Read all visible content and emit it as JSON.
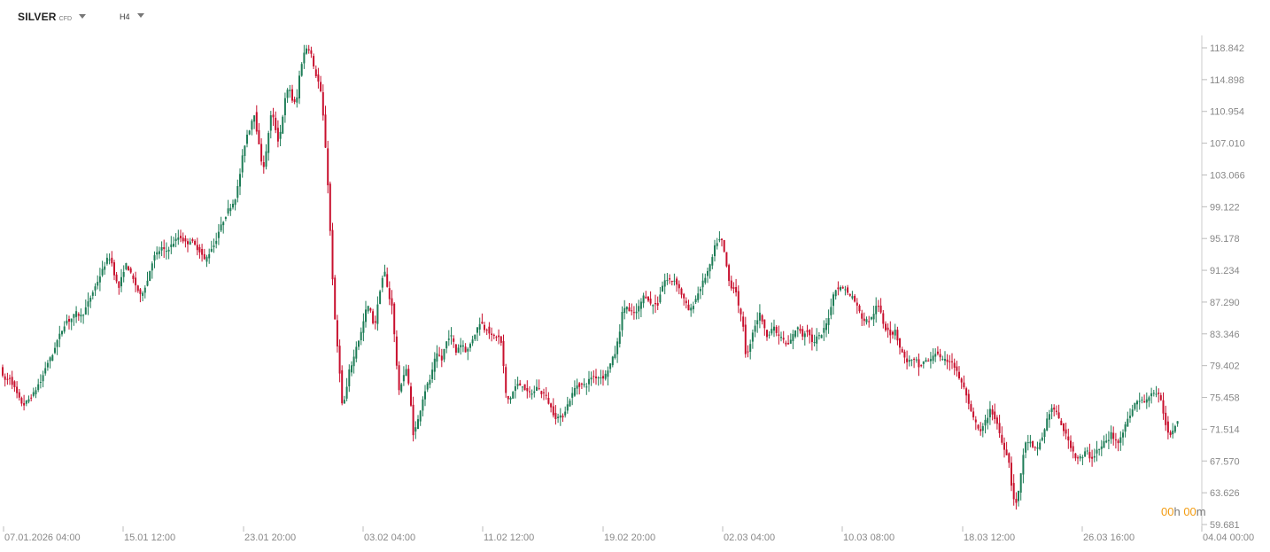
{
  "header": {
    "symbol": "SILVER",
    "symbol_type": "CFD",
    "timeframe": "H4"
  },
  "timer": {
    "hours": "00",
    "hours_unit": "h",
    "minutes": "00",
    "minutes_unit": "m"
  },
  "colors": {
    "up": "#1e7d57",
    "down": "#c8102e",
    "axis_text": "#888888",
    "timer": "#f39c12"
  },
  "chart_data": {
    "type": "candlestick",
    "y_ticks": [
      "118.842",
      "114.898",
      "110.954",
      "107.010",
      "103.066",
      "99.122",
      "95.178",
      "91.234",
      "87.290",
      "83.346",
      "79.402",
      "75.458",
      "71.514",
      "67.570",
      "63.626",
      "59.681"
    ],
    "x_ticks": [
      "07.01.2026 04:00",
      "15.01 12:00",
      "23.01 20:00",
      "03.02 04:00",
      "11.02 12:00",
      "19.02 20:00",
      "02.03 04:00",
      "10.03 08:00",
      "18.03 12:00",
      "26.03 16:00",
      "04.04 00:00"
    ],
    "ylim": [
      59.681,
      122.2
    ],
    "path": [
      [
        0,
        80.5
      ],
      [
        4,
        78
      ],
      [
        8,
        77.5
      ],
      [
        12,
        78
      ],
      [
        16,
        77
      ],
      [
        20,
        76
      ],
      [
        24,
        75
      ],
      [
        28,
        74.5
      ],
      [
        32,
        75
      ],
      [
        36,
        75.5
      ],
      [
        40,
        76
      ],
      [
        44,
        77
      ],
      [
        48,
        77.5
      ],
      [
        52,
        79
      ],
      [
        56,
        80
      ],
      [
        60,
        80.5
      ],
      [
        64,
        82
      ],
      [
        68,
        83
      ],
      [
        72,
        84
      ],
      [
        76,
        85
      ],
      [
        80,
        85
      ],
      [
        84,
        85.5
      ],
      [
        88,
        86
      ],
      [
        92,
        85.5
      ],
      [
        96,
        86
      ],
      [
        100,
        87
      ],
      [
        104,
        88
      ],
      [
        108,
        89
      ],
      [
        112,
        90
      ],
      [
        116,
        91
      ],
      [
        120,
        92
      ],
      [
        124,
        93
      ],
      [
        128,
        92
      ],
      [
        132,
        90
      ],
      [
        136,
        89
      ],
      [
        140,
        91
      ],
      [
        144,
        92
      ],
      [
        148,
        91
      ],
      [
        152,
        90
      ],
      [
        156,
        89
      ],
      [
        160,
        88
      ],
      [
        164,
        89
      ],
      [
        168,
        90
      ],
      [
        172,
        92
      ],
      [
        176,
        93
      ],
      [
        180,
        93.5
      ],
      [
        184,
        94
      ],
      [
        188,
        93.5
      ],
      [
        192,
        94
      ],
      [
        196,
        94.5
      ],
      [
        200,
        95
      ],
      [
        204,
        95.5
      ],
      [
        208,
        95
      ],
      [
        212,
        94.5
      ],
      [
        216,
        95
      ],
      [
        220,
        94.5
      ],
      [
        224,
        94
      ],
      [
        228,
        93.5
      ],
      [
        232,
        92.5
      ],
      [
        236,
        93
      ],
      [
        240,
        94
      ],
      [
        244,
        94.5
      ],
      [
        248,
        96
      ],
      [
        252,
        97
      ],
      [
        256,
        98
      ],
      [
        260,
        99
      ],
      [
        264,
        99.5
      ],
      [
        268,
        100.5
      ],
      [
        272,
        103
      ],
      [
        276,
        106
      ],
      [
        280,
        108
      ],
      [
        284,
        109
      ],
      [
        288,
        111
      ],
      [
        292,
        108
      ],
      [
        296,
        105
      ],
      [
        300,
        104
      ],
      [
        304,
        108
      ],
      [
        308,
        111
      ],
      [
        312,
        109
      ],
      [
        316,
        107
      ],
      [
        320,
        110
      ],
      [
        324,
        113
      ],
      [
        328,
        114
      ],
      [
        332,
        112
      ],
      [
        336,
        112
      ],
      [
        340,
        116
      ],
      [
        344,
        118
      ],
      [
        348,
        119
      ],
      [
        352,
        118.5
      ],
      [
        356,
        116
      ],
      [
        360,
        115
      ],
      [
        364,
        113
      ],
      [
        368,
        108
      ],
      [
        372,
        101
      ],
      [
        376,
        92
      ],
      [
        380,
        84
      ],
      [
        384,
        80
      ],
      [
        388,
        74
      ],
      [
        392,
        76
      ],
      [
        396,
        79
      ],
      [
        400,
        80
      ],
      [
        404,
        82
      ],
      [
        408,
        83
      ],
      [
        412,
        85
      ],
      [
        416,
        87
      ],
      [
        420,
        86
      ],
      [
        424,
        84
      ],
      [
        428,
        87
      ],
      [
        432,
        90
      ],
      [
        436,
        91
      ],
      [
        440,
        88
      ],
      [
        444,
        87
      ],
      [
        448,
        81
      ],
      [
        452,
        76
      ],
      [
        456,
        78
      ],
      [
        460,
        79
      ],
      [
        464,
        76
      ],
      [
        468,
        71
      ],
      [
        472,
        72
      ],
      [
        476,
        74
      ],
      [
        480,
        76
      ],
      [
        484,
        77
      ],
      [
        488,
        78
      ],
      [
        492,
        80
      ],
      [
        496,
        81
      ],
      [
        500,
        80
      ],
      [
        504,
        82
      ],
      [
        508,
        83
      ],
      [
        512,
        83
      ],
      [
        516,
        81
      ],
      [
        520,
        82
      ],
      [
        524,
        82
      ],
      [
        528,
        81
      ],
      [
        532,
        82
      ],
      [
        536,
        83
      ],
      [
        540,
        84
      ],
      [
        544,
        85
      ],
      [
        548,
        84
      ],
      [
        552,
        84
      ],
      [
        556,
        83
      ],
      [
        560,
        83
      ],
      [
        564,
        83
      ],
      [
        568,
        82
      ],
      [
        572,
        76
      ],
      [
        576,
        75
      ],
      [
        580,
        76
      ],
      [
        584,
        77
      ],
      [
        588,
        77
      ],
      [
        592,
        77
      ],
      [
        596,
        76
      ],
      [
        600,
        76
      ],
      [
        604,
        76
      ],
      [
        608,
        77
      ],
      [
        612,
        76
      ],
      [
        616,
        76
      ],
      [
        620,
        75
      ],
      [
        624,
        74
      ],
      [
        628,
        73
      ],
      [
        632,
        73
      ],
      [
        636,
        73
      ],
      [
        640,
        74
      ],
      [
        644,
        75
      ],
      [
        648,
        76
      ],
      [
        652,
        77
      ],
      [
        656,
        77
      ],
      [
        660,
        77
      ],
      [
        664,
        77
      ],
      [
        668,
        78
      ],
      [
        672,
        78
      ],
      [
        676,
        78
      ],
      [
        680,
        78
      ],
      [
        684,
        78
      ],
      [
        688,
        79
      ],
      [
        692,
        80
      ],
      [
        696,
        81
      ],
      [
        700,
        83
      ],
      [
        704,
        86
      ],
      [
        708,
        87
      ],
      [
        712,
        86
      ],
      [
        716,
        86
      ],
      [
        720,
        86
      ],
      [
        724,
        87
      ],
      [
        728,
        88
      ],
      [
        732,
        88
      ],
      [
        736,
        87
      ],
      [
        740,
        87
      ],
      [
        744,
        87
      ],
      [
        748,
        89
      ],
      [
        752,
        90
      ],
      [
        756,
        90
      ],
      [
        760,
        90
      ],
      [
        764,
        90
      ],
      [
        768,
        89
      ],
      [
        772,
        88
      ],
      [
        776,
        87
      ],
      [
        780,
        86
      ],
      [
        784,
        87
      ],
      [
        788,
        88
      ],
      [
        792,
        89
      ],
      [
        796,
        90
      ],
      [
        800,
        91
      ],
      [
        804,
        92
      ],
      [
        808,
        94
      ],
      [
        812,
        95
      ],
      [
        816,
        95
      ],
      [
        820,
        93
      ],
      [
        824,
        90
      ],
      [
        828,
        89
      ],
      [
        832,
        89
      ],
      [
        836,
        86
      ],
      [
        840,
        85
      ],
      [
        844,
        80
      ],
      [
        848,
        82
      ],
      [
        852,
        84
      ],
      [
        856,
        85
      ],
      [
        860,
        86
      ],
      [
        864,
        84
      ],
      [
        868,
        83
      ],
      [
        872,
        84
      ],
      [
        876,
        84
      ],
      [
        880,
        83
      ],
      [
        884,
        83
      ],
      [
        888,
        82
      ],
      [
        892,
        82
      ],
      [
        896,
        83
      ],
      [
        900,
        84
      ],
      [
        904,
        84
      ],
      [
        908,
        83
      ],
      [
        912,
        84
      ],
      [
        916,
        83
      ],
      [
        920,
        82
      ],
      [
        924,
        83
      ],
      [
        928,
        83
      ],
      [
        932,
        84
      ],
      [
        936,
        85
      ],
      [
        940,
        87
      ],
      [
        944,
        89
      ],
      [
        948,
        89
      ],
      [
        952,
        89
      ],
      [
        956,
        89
      ],
      [
        960,
        88
      ],
      [
        964,
        88
      ],
      [
        968,
        87
      ],
      [
        972,
        86
      ],
      [
        976,
        85
      ],
      [
        980,
        85
      ],
      [
        984,
        85
      ],
      [
        988,
        86
      ],
      [
        992,
        87
      ],
      [
        996,
        86
      ],
      [
        1000,
        84
      ],
      [
        1004,
        84
      ],
      [
        1008,
        83
      ],
      [
        1012,
        84
      ],
      [
        1016,
        82
      ],
      [
        1020,
        81
      ],
      [
        1024,
        80
      ],
      [
        1028,
        80
      ],
      [
        1032,
        80
      ],
      [
        1036,
        80
      ],
      [
        1040,
        79
      ],
      [
        1044,
        80
      ],
      [
        1048,
        80
      ],
      [
        1052,
        80
      ],
      [
        1056,
        81
      ],
      [
        1060,
        81
      ],
      [
        1064,
        80
      ],
      [
        1068,
        80
      ],
      [
        1072,
        80
      ],
      [
        1076,
        80
      ],
      [
        1080,
        79
      ],
      [
        1084,
        78
      ],
      [
        1088,
        77
      ],
      [
        1092,
        76
      ],
      [
        1096,
        74
      ],
      [
        1100,
        73
      ],
      [
        1104,
        72
      ],
      [
        1108,
        71
      ],
      [
        1112,
        72
      ],
      [
        1116,
        73
      ],
      [
        1120,
        74
      ],
      [
        1124,
        73
      ],
      [
        1128,
        72
      ],
      [
        1132,
        70
      ],
      [
        1136,
        69
      ],
      [
        1140,
        68
      ],
      [
        1144,
        64
      ],
      [
        1148,
        62
      ],
      [
        1152,
        64
      ],
      [
        1156,
        68
      ],
      [
        1160,
        70
      ],
      [
        1164,
        70
      ],
      [
        1168,
        69
      ],
      [
        1172,
        69
      ],
      [
        1176,
        70
      ],
      [
        1180,
        71
      ],
      [
        1184,
        73
      ],
      [
        1188,
        74
      ],
      [
        1192,
        74
      ],
      [
        1196,
        73
      ],
      [
        1200,
        72
      ],
      [
        1204,
        71
      ],
      [
        1208,
        70
      ],
      [
        1212,
        69
      ],
      [
        1216,
        68
      ],
      [
        1220,
        68
      ],
      [
        1224,
        68
      ],
      [
        1228,
        69
      ],
      [
        1232,
        68
      ],
      [
        1236,
        68
      ],
      [
        1240,
        69
      ],
      [
        1244,
        69
      ],
      [
        1248,
        70
      ],
      [
        1252,
        70
      ],
      [
        1256,
        71
      ],
      [
        1260,
        70
      ],
      [
        1264,
        70
      ],
      [
        1268,
        71
      ],
      [
        1272,
        72
      ],
      [
        1276,
        73
      ],
      [
        1280,
        74
      ],
      [
        1284,
        75
      ],
      [
        1288,
        75
      ],
      [
        1292,
        75
      ],
      [
        1296,
        75
      ],
      [
        1300,
        76
      ],
      [
        1304,
        76
      ],
      [
        1308,
        76
      ],
      [
        1312,
        75
      ],
      [
        1316,
        73
      ],
      [
        1320,
        71
      ],
      [
        1324,
        71
      ],
      [
        1328,
        72
      ],
      [
        1332,
        73
      ]
    ]
  }
}
